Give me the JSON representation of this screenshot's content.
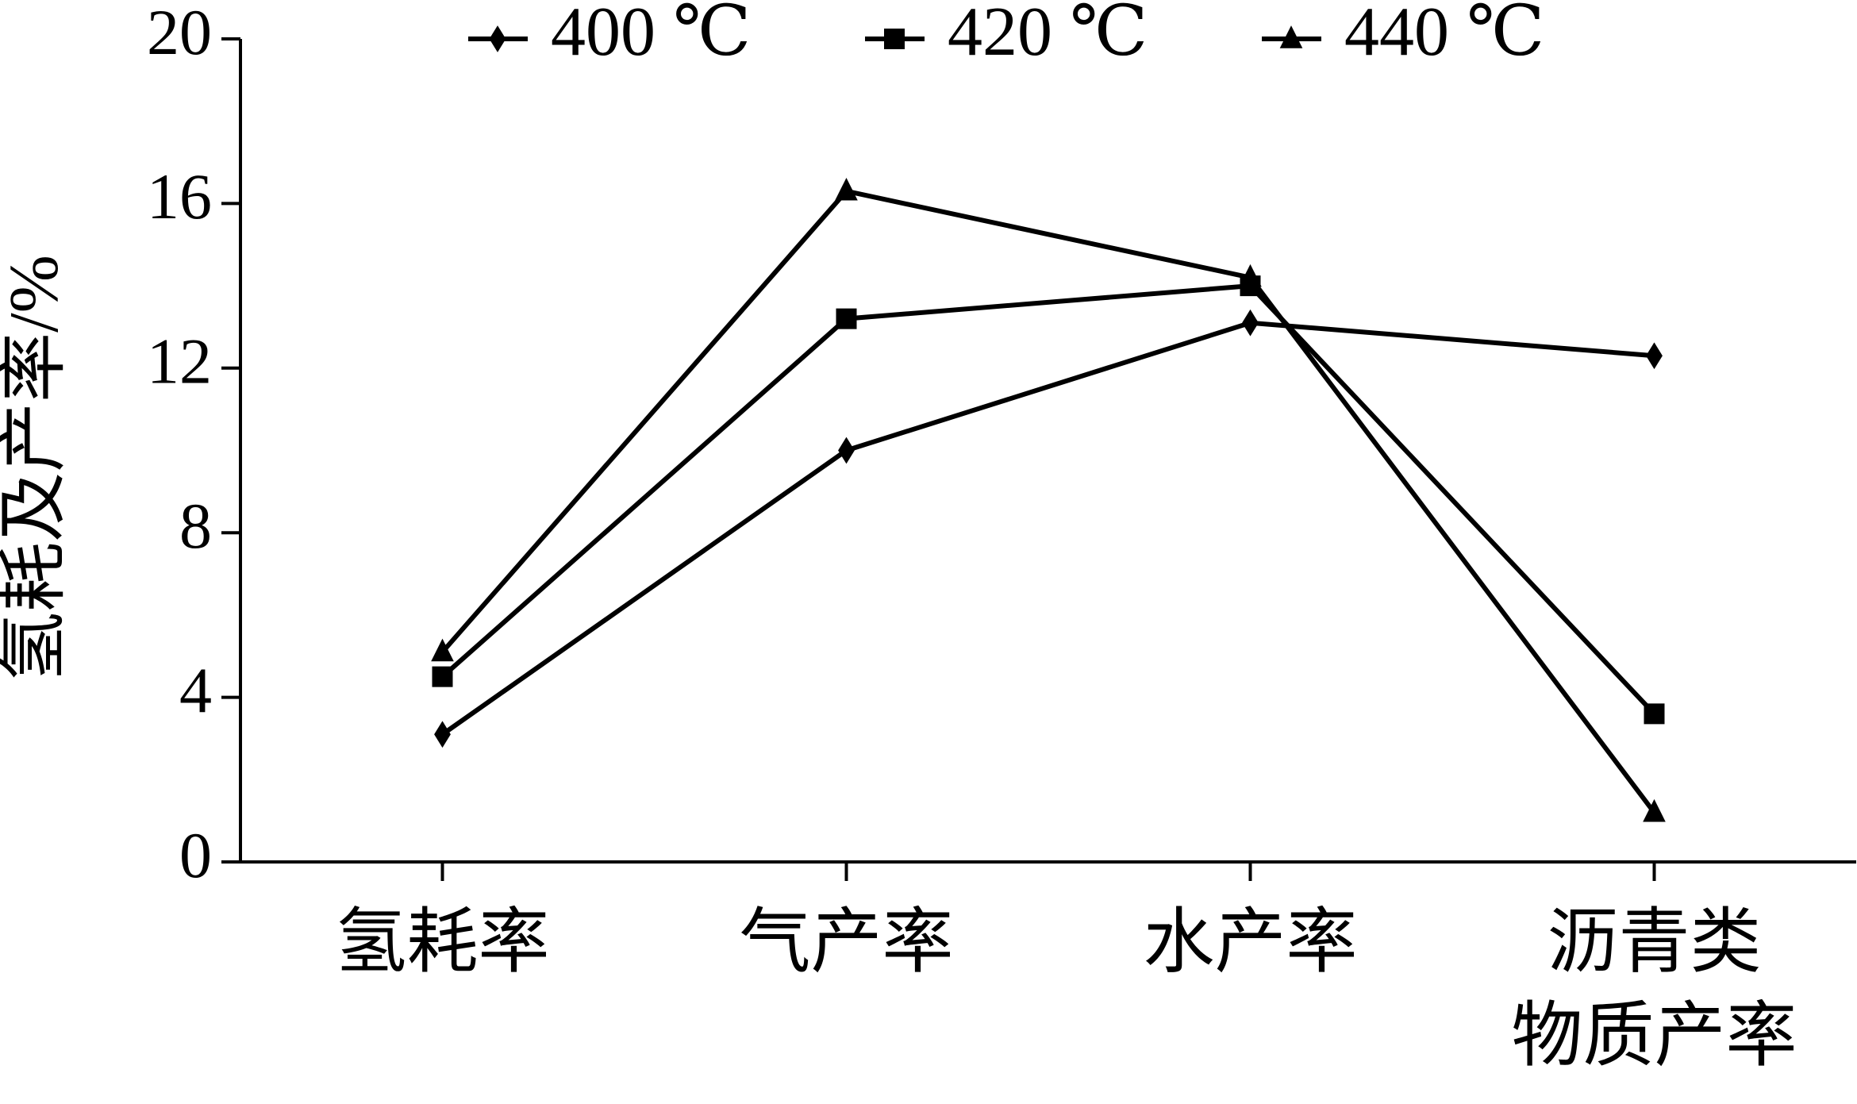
{
  "chart_data": {
    "type": "line",
    "y_label": "氢耗及产率/%",
    "categories": [
      "氢耗率",
      "气产率",
      "水产率",
      "沥青类\n物质产率"
    ],
    "series": [
      {
        "name": "400 ℃",
        "color": "#000000",
        "marker": "diamond",
        "values": [
          3.1,
          10.0,
          13.1,
          12.3
        ]
      },
      {
        "name": "420 ℃",
        "color": "#000000",
        "marker": "square",
        "values": [
          4.5,
          13.2,
          14.0,
          3.6
        ]
      },
      {
        "name": "440 ℃",
        "color": "#000000",
        "marker": "triangle",
        "values": [
          5.1,
          16.3,
          14.2,
          1.2
        ]
      }
    ],
    "ylim": [
      0,
      20
    ],
    "yticks": [
      0,
      4,
      8,
      12,
      16,
      20
    ],
    "grid": false,
    "legend": "top"
  }
}
